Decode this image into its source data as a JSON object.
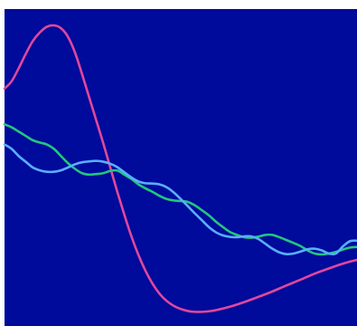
{
  "chart_data": {
    "type": "line",
    "title": "",
    "xlabel": "",
    "ylabel": "",
    "grid": false,
    "legend": "none",
    "background_color": "#000a9b",
    "xlim": [
      0,
      100
    ],
    "ylim": [
      0,
      100
    ],
    "series": [
      {
        "color": "#e0489a",
        "points": [
          [
            0,
            78
          ],
          [
            2,
            80.5
          ],
          [
            4,
            85
          ],
          [
            6,
            90
          ],
          [
            8,
            94.5
          ],
          [
            10,
            97.5
          ],
          [
            12,
            99.5
          ],
          [
            14,
            100
          ],
          [
            16,
            99
          ],
          [
            18,
            96
          ],
          [
            20,
            90.5
          ],
          [
            22,
            83
          ],
          [
            24,
            75
          ],
          [
            26,
            67
          ],
          [
            28,
            59
          ],
          [
            30,
            50.5
          ],
          [
            32,
            42
          ],
          [
            34,
            34
          ],
          [
            36,
            26.5
          ],
          [
            38,
            20
          ],
          [
            40,
            14.5
          ],
          [
            42,
            10
          ],
          [
            44,
            6.5
          ],
          [
            46,
            4
          ],
          [
            48,
            2.3
          ],
          [
            50,
            1.2
          ],
          [
            52,
            0.5
          ],
          [
            54,
            0.2
          ],
          [
            56,
            0.2
          ],
          [
            58,
            0.4
          ],
          [
            60,
            0.8
          ],
          [
            64,
            2
          ],
          [
            68,
            3.6
          ],
          [
            72,
            5.4
          ],
          [
            76,
            7.3
          ],
          [
            80,
            9.4
          ],
          [
            84,
            11.4
          ],
          [
            88,
            13.5
          ],
          [
            92,
            15.3
          ],
          [
            96,
            17
          ],
          [
            100,
            18.3
          ]
        ]
      },
      {
        "color": "#22c77c",
        "points": [
          [
            0,
            65.5
          ],
          [
            2,
            64.5
          ],
          [
            4,
            63
          ],
          [
            6,
            61.5
          ],
          [
            8,
            60
          ],
          [
            10,
            59.2
          ],
          [
            12,
            58.5
          ],
          [
            14,
            57
          ],
          [
            16,
            54.5
          ],
          [
            18,
            52
          ],
          [
            20,
            50
          ],
          [
            22,
            48.5
          ],
          [
            24,
            48
          ],
          [
            26,
            48.2
          ],
          [
            28,
            48.5
          ],
          [
            30,
            49.3
          ],
          [
            32,
            49.4
          ],
          [
            34,
            48
          ],
          [
            36,
            46.5
          ],
          [
            38,
            44.6
          ],
          [
            40,
            43.2
          ],
          [
            42,
            42
          ],
          [
            44,
            40.6
          ],
          [
            46,
            39.5
          ],
          [
            48,
            39
          ],
          [
            50,
            38.8
          ],
          [
            52,
            38.5
          ],
          [
            54,
            37.3
          ],
          [
            56,
            35.6
          ],
          [
            58,
            33.8
          ],
          [
            60,
            31.6
          ],
          [
            62,
            29.7
          ],
          [
            64,
            28
          ],
          [
            66,
            27
          ],
          [
            68,
            26.2
          ],
          [
            70,
            26
          ],
          [
            72,
            26.4
          ],
          [
            74,
            27
          ],
          [
            76,
            27
          ],
          [
            78,
            26.2
          ],
          [
            80,
            25.2
          ],
          [
            82,
            24.2
          ],
          [
            84,
            23.1
          ],
          [
            86,
            21.6
          ],
          [
            88,
            20.5
          ],
          [
            90,
            20.2
          ],
          [
            92,
            20.5
          ],
          [
            94,
            21.1
          ],
          [
            96,
            21.9
          ],
          [
            98,
            22.6
          ],
          [
            100,
            22.8
          ]
        ]
      },
      {
        "color": "#5aaeff",
        "points": [
          [
            0,
            58.5
          ],
          [
            2,
            57
          ],
          [
            4,
            54.5
          ],
          [
            6,
            52.5
          ],
          [
            8,
            50.5
          ],
          [
            10,
            49.5
          ],
          [
            12,
            49
          ],
          [
            14,
            49
          ],
          [
            16,
            49.5
          ],
          [
            18,
            50.5
          ],
          [
            20,
            51.6
          ],
          [
            22,
            52.3
          ],
          [
            24,
            52.6
          ],
          [
            26,
            52.8
          ],
          [
            28,
            52.5
          ],
          [
            30,
            51.8
          ],
          [
            32,
            50.6
          ],
          [
            34,
            48.8
          ],
          [
            36,
            47
          ],
          [
            38,
            45.6
          ],
          [
            40,
            45
          ],
          [
            42,
            44.9
          ],
          [
            44,
            44.6
          ],
          [
            46,
            43.6
          ],
          [
            48,
            41.8
          ],
          [
            50,
            39.5
          ],
          [
            52,
            37
          ],
          [
            54,
            34.5
          ],
          [
            56,
            32.1
          ],
          [
            58,
            29.7
          ],
          [
            60,
            27.9
          ],
          [
            62,
            26.8
          ],
          [
            64,
            26.3
          ],
          [
            66,
            26.2
          ],
          [
            68,
            26.5
          ],
          [
            70,
            26.5
          ],
          [
            72,
            25.6
          ],
          [
            74,
            23.9
          ],
          [
            76,
            22.2
          ],
          [
            78,
            20.9
          ],
          [
            80,
            20.3
          ],
          [
            82,
            20.5
          ],
          [
            84,
            21.2
          ],
          [
            86,
            22
          ],
          [
            88,
            22.2
          ],
          [
            90,
            21.6
          ],
          [
            92,
            20.5
          ],
          [
            94,
            20.5
          ],
          [
            96,
            23
          ],
          [
            98,
            24.8
          ],
          [
            100,
            25
          ]
        ]
      }
    ]
  }
}
